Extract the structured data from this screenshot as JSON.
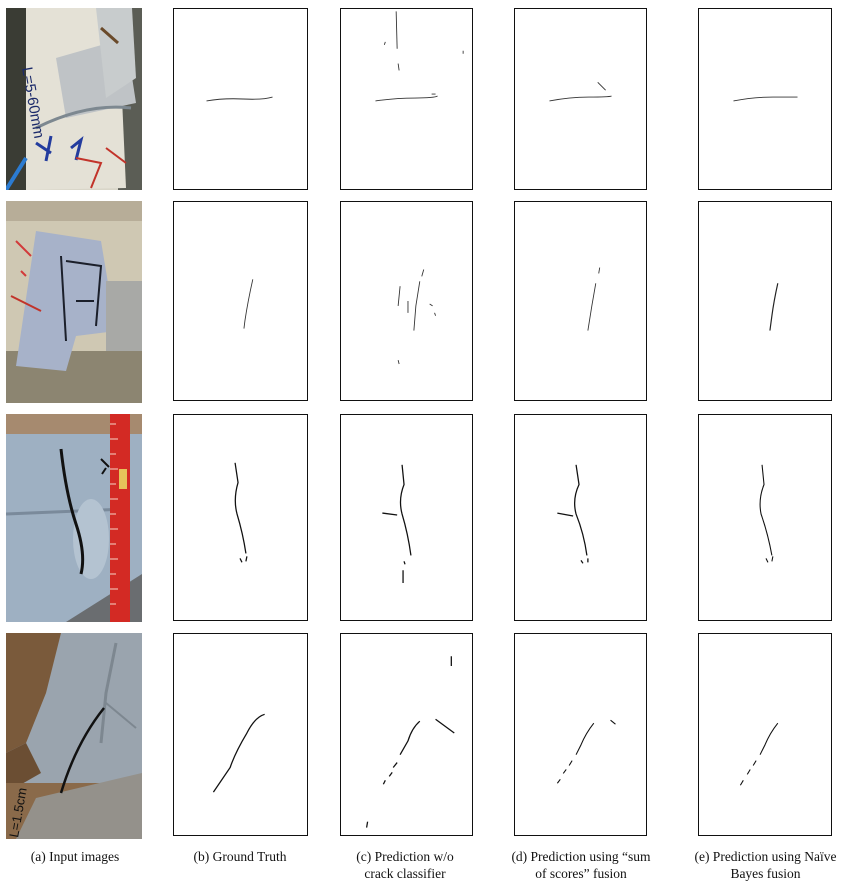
{
  "figure": {
    "columns": [
      {
        "id": "a",
        "caption_lines": [
          "(a) Input images"
        ]
      },
      {
        "id": "b",
        "caption_lines": [
          "(b) Ground Truth"
        ]
      },
      {
        "id": "c",
        "caption_lines": [
          "(c) Prediction w/o",
          "crack classifier"
        ]
      },
      {
        "id": "d",
        "caption_lines": [
          "(d) Prediction using “sum",
          "of scores” fusion"
        ]
      },
      {
        "id": "e",
        "caption_lines": [
          "(e) Prediction using Naïve",
          "Bayes fusion"
        ]
      }
    ],
    "rows": [
      {
        "id": "row-1",
        "photo_handwriting": "L=5-60mm"
      },
      {
        "id": "row-2"
      },
      {
        "id": "row-3"
      },
      {
        "id": "row-4",
        "photo_handwriting": "L=1.5cm"
      }
    ],
    "colors": {
      "crack": "#111111",
      "frame": "#111111",
      "paint_gray": "#a9b3bf",
      "ruler_red": "#d32a24"
    }
  }
}
